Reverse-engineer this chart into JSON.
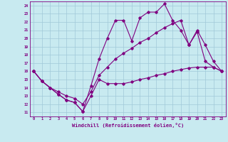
{
  "xlabel": "Windchill (Refroidissement éolien,°C)",
  "background_color": "#c8eaf0",
  "line_color": "#800080",
  "grid_color": "#a0c8d8",
  "x_ticks": [
    0,
    1,
    2,
    3,
    4,
    5,
    6,
    7,
    8,
    9,
    10,
    11,
    12,
    13,
    14,
    15,
    16,
    17,
    18,
    19,
    20,
    21,
    22,
    23
  ],
  "y_ticks": [
    11,
    12,
    13,
    14,
    15,
    16,
    17,
    18,
    19,
    20,
    21,
    22,
    23,
    24
  ],
  "xlim": [
    -0.5,
    23.5
  ],
  "ylim": [
    10.5,
    24.5
  ],
  "series": [
    [
      16.0,
      14.8,
      14.0,
      13.2,
      12.5,
      12.2,
      11.1,
      13.0,
      15.0,
      14.5,
      14.5,
      14.5,
      14.7,
      15.0,
      15.2,
      15.5,
      15.7,
      16.0,
      16.2,
      16.4,
      16.5,
      16.5,
      16.5,
      16.0
    ],
    [
      16.0,
      14.8,
      14.0,
      13.2,
      12.5,
      12.2,
      11.1,
      14.2,
      17.5,
      20.0,
      22.2,
      22.2,
      19.7,
      22.5,
      23.2,
      23.2,
      24.2,
      22.2,
      21.0,
      19.2,
      21.0,
      19.2,
      17.2,
      16.0
    ],
    [
      16.0,
      14.8,
      14.0,
      13.5,
      13.0,
      12.7,
      12.0,
      13.5,
      15.5,
      16.5,
      17.5,
      18.2,
      18.8,
      19.5,
      20.0,
      20.7,
      21.3,
      21.8,
      22.2,
      19.2,
      20.8,
      17.2,
      16.5,
      16.0
    ]
  ]
}
